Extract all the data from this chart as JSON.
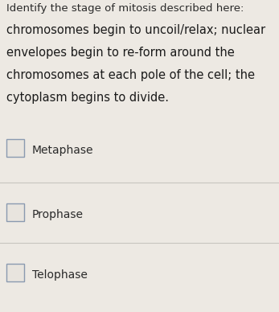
{
  "background_color": "#ede9e3",
  "title_partial": "Identify the stage of mitosis described here:",
  "desc_lines": [
    "chromosomes begin to uncoil/relax; nuclear",
    "envelopes begin to re-form around the",
    "chromosomes at each pole of the cell; the",
    "cytoplasm begins to divide."
  ],
  "options": [
    "Metaphase",
    "Prophase",
    "Telophase"
  ],
  "title_fontsize": 9.5,
  "desc_fontsize": 10.5,
  "option_fontsize": 10,
  "text_color": "#1a1a1a",
  "option_text_color": "#2a2a2a",
  "title_color": "#2a2a2a",
  "divider_color": "#c8c5bf",
  "checkbox_edge_color": "#8a9ab0",
  "checkbox_face_color": "#e8e4de"
}
